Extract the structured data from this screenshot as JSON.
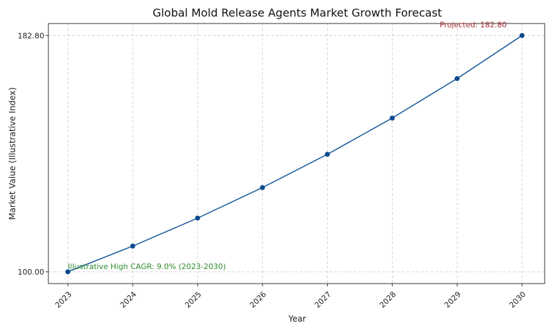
{
  "chart_data": {
    "type": "line",
    "title": "Global Mold Release Agents Market Growth Forecast",
    "xlabel": "Year",
    "ylabel": "Market Value (Illustrative Index)",
    "x": [
      2023,
      2024,
      2025,
      2026,
      2027,
      2028,
      2029,
      2030
    ],
    "categories": [
      "2023",
      "2024",
      "2025",
      "2026",
      "2027",
      "2028",
      "2029",
      "2030"
    ],
    "series": [
      {
        "values": [
          100.0,
          109.0,
          118.81,
          129.5,
          141.16,
          153.86,
          167.71,
          182.8
        ],
        "color": "#1f5fa0",
        "marker_color": "#0b4a8f"
      }
    ],
    "y_ticks": [
      "100.00",
      "182.80"
    ],
    "y_tick_values": [
      100.0,
      182.8
    ],
    "ylim": [
      95.86,
      187.0
    ],
    "grid": true,
    "annotations": [
      {
        "text": "Projected: 182.80",
        "color": "#a52a2a",
        "x": 2030,
        "y": 182.8
      },
      {
        "text": "Illustrative High CAGR: 9.0% (2023-2030)",
        "color": "#2e8b2e",
        "x": 2023,
        "y": 100.0
      }
    ]
  }
}
